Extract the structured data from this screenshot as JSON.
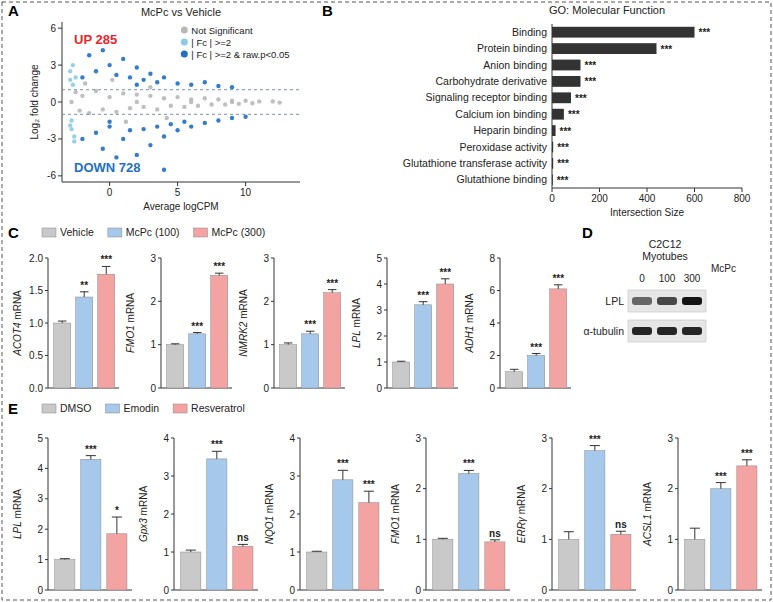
{
  "panel_labels": [
    "A",
    "B",
    "C",
    "D",
    "E"
  ],
  "legends": [
    {
      "labels": [
        "Vehicle",
        "McPc (100)",
        "McPc (300)"
      ],
      "colors": [
        "#c9c9c9",
        "#a6c8ea",
        "#f4a3a3"
      ]
    },
    {
      "labels": [
        "DMSO",
        "Emodin",
        "Resveratrol"
      ],
      "colors": [
        "#c9c9c9",
        "#a6c8ea",
        "#f4a3a3"
      ]
    }
  ],
  "blot": {
    "title": "C2C12 Myotubes",
    "treatment": "McPc",
    "lanes": [
      "0",
      "100",
      "300"
    ],
    "bands": [
      {
        "label": "LPL",
        "intensity": [
          0.6,
          0.72,
          0.92
        ]
      },
      {
        "label": "α-tubulin",
        "intensity": [
          0.85,
          0.85,
          0.85
        ]
      }
    ]
  },
  "chart_data": [
    {
      "type": "scatter",
      "title": "McPc vs Vehicle",
      "x_label": "Average logCPM",
      "y_label": "Log₂ fold change",
      "xlim": [
        -3.5,
        14
      ],
      "ylim": [
        -6.5,
        6.5
      ],
      "xticks": [
        0,
        5,
        10
      ],
      "yticks": [
        -6,
        -3,
        0,
        3,
        6
      ],
      "hlines": [
        1,
        -1
      ],
      "legend": "top-right",
      "annotations": [
        {
          "text": "UP 285",
          "color": "#e8262b"
        },
        {
          "text": "DOWN 728",
          "color": "#1f6fc4"
        }
      ],
      "series": [
        {
          "name": "Not Significant",
          "color": "#b8b8b8",
          "x": [
            -2.5,
            -2.2,
            -2,
            -1.5,
            -1,
            -0.5,
            0,
            0.5,
            1,
            1.5,
            2,
            2.5,
            3,
            3.5,
            4,
            4.5,
            5,
            5.5,
            6,
            6.5,
            7,
            7.5,
            8,
            8.5,
            9,
            9.5,
            10,
            10.5,
            11,
            -1.8,
            0.2,
            1.2,
            3,
            4.2,
            -2.8,
            2,
            6,
            9,
            12,
            12.5
          ],
          "values": [
            0.8,
            -0.7,
            0.5,
            -0.9,
            0.9,
            -0.6,
            0.4,
            -0.8,
            0.7,
            -0.5,
            0.6,
            -0.4,
            0.5,
            -0.6,
            0.3,
            -0.3,
            0.4,
            -0.4,
            0.2,
            -0.3,
            0.3,
            -0.2,
            0.2,
            -0.2,
            0.1,
            -0.15,
            0.1,
            -0.1,
            0.05,
            1.5,
            1.8,
            -1.6,
            1.2,
            -1.3,
            0,
            0,
            0,
            0,
            0.05,
            -0.05
          ]
        },
        {
          "name": "| Fc | >=2",
          "color": "#8ccbe8",
          "x": [
            -2.9,
            -2.8,
            -2.7,
            -2.6,
            -2.9,
            -2.8,
            -2.5,
            -2.6,
            -2.9,
            -2.7
          ],
          "values": [
            2.5,
            -2.2,
            3.0,
            -2.8,
            1.8,
            -1.5,
            2.0,
            -3.2,
            -1.9,
            1.4
          ]
        },
        {
          "name": "| Fc | >=2 & raw.p<0.05",
          "color": "#1f6fc4",
          "x": [
            -1.5,
            -1,
            -0.5,
            0,
            0.5,
            1,
            1.5,
            2,
            2.5,
            3,
            3.5,
            4,
            5,
            6,
            7,
            8,
            9,
            -1,
            -0.5,
            0,
            0.5,
            1,
            1.5,
            2,
            2.5,
            3,
            3.5,
            4,
            4.5,
            5,
            5.5,
            6,
            7,
            8,
            9,
            10,
            4,
            0,
            2,
            -2,
            -2
          ],
          "values": [
            3.8,
            2.5,
            4.2,
            3.0,
            2.2,
            3.5,
            2.0,
            2.8,
            1.8,
            2.3,
            1.6,
            2.0,
            1.5,
            1.4,
            1.6,
            1.3,
            1.2,
            -2.5,
            -3.8,
            -2.0,
            -4.5,
            -3.0,
            -2.3,
            -4.3,
            -2.2,
            -3.5,
            -2.0,
            -2.8,
            -1.8,
            -2.3,
            -1.6,
            -2.0,
            -1.7,
            -1.5,
            -1.3,
            -1.2,
            -5.5,
            -1.6,
            1.4,
            2.0,
            -3.0
          ]
        }
      ]
    },
    {
      "type": "bar",
      "orientation": "horizontal",
      "title": "GO: Molecular Function",
      "x_label": "Intersection Size",
      "color": "#333333",
      "categories": [
        "Binding",
        "Protein binding",
        "Anion binding",
        "Carbohydrate derivative",
        "Signaling receptor binding",
        "Calcium ion binding",
        "Heparin binding",
        "Peroxidase activity",
        "Glutathione transferase activity",
        "Glutathione binding"
      ],
      "values": [
        600,
        440,
        120,
        120,
        80,
        50,
        15,
        5,
        5,
        3
      ],
      "annotations": [
        "***",
        "***",
        "***",
        "***",
        "***",
        "***",
        "***",
        "***",
        "***",
        "***"
      ],
      "xlim": [
        0,
        800
      ],
      "xticks": [
        0,
        200,
        400,
        600,
        800
      ]
    },
    {
      "type": "bar",
      "y_label": "ACOT4 mRNA",
      "colors": [
        "#c9c9c9",
        "#a6c8ea",
        "#f4a3a3"
      ],
      "values": [
        1.0,
        1.4,
        1.75
      ],
      "errors": [
        0.03,
        0.08,
        0.12
      ],
      "annotations": [
        null,
        "**",
        "***"
      ],
      "ylim": [
        0,
        2
      ],
      "yticks": [
        {
          "value": 0,
          "label": "0.0"
        },
        0.5,
        {
          "value": 1,
          "label": "1.0"
        },
        1.5,
        {
          "value": 2,
          "label": "2.0"
        }
      ]
    },
    {
      "type": "bar",
      "y_label": "FMO1 mRNA",
      "colors": [
        "#c9c9c9",
        "#a6c8ea",
        "#f4a3a3"
      ],
      "values": [
        1.0,
        1.25,
        2.6
      ],
      "errors": [
        0.02,
        0.03,
        0.05
      ],
      "annotations": [
        null,
        "***",
        "***"
      ],
      "ylim": [
        0,
        3
      ],
      "yticks": [
        0,
        1,
        2,
        3
      ]
    },
    {
      "type": "bar",
      "y_label": "NMRK2 mRNA",
      "colors": [
        "#c9c9c9",
        "#a6c8ea",
        "#f4a3a3"
      ],
      "values": [
        1.0,
        1.25,
        2.2
      ],
      "errors": [
        0.04,
        0.06,
        0.07
      ],
      "annotations": [
        null,
        "***",
        "***"
      ],
      "ylim": [
        0,
        3
      ],
      "yticks": [
        0,
        1,
        2,
        3
      ]
    },
    {
      "type": "bar",
      "y_label": "LPL mRNA",
      "colors": [
        "#c9c9c9",
        "#a6c8ea",
        "#f4a3a3"
      ],
      "values": [
        1.0,
        3.2,
        4.0
      ],
      "errors": [
        0.03,
        0.12,
        0.2
      ],
      "annotations": [
        null,
        "***",
        "***"
      ],
      "ylim": [
        0,
        5
      ],
      "yticks": [
        0,
        1,
        2,
        3,
        4,
        5
      ]
    },
    {
      "type": "bar",
      "y_label": "ADH1 mRNA",
      "colors": [
        "#c9c9c9",
        "#a6c8ea",
        "#f4a3a3"
      ],
      "values": [
        1.0,
        2.0,
        6.1
      ],
      "errors": [
        0.15,
        0.12,
        0.25
      ],
      "annotations": [
        null,
        "***",
        "***"
      ],
      "ylim": [
        0,
        8
      ],
      "yticks": [
        0,
        2,
        4,
        6,
        8
      ]
    },
    {
      "type": "bar",
      "y_label": "LPL mRNA",
      "colors": [
        "#c9c9c9",
        "#a6c8ea",
        "#f4a3a3"
      ],
      "values": [
        1.0,
        4.3,
        1.85
      ],
      "errors": [
        0.03,
        0.12,
        0.55
      ],
      "annotations": [
        null,
        "***",
        "*"
      ],
      "ylim": [
        0,
        5
      ],
      "yticks": [
        0,
        1,
        2,
        3,
        4,
        5
      ]
    },
    {
      "type": "bar",
      "y_label": "Gpx3 mRNA",
      "colors": [
        "#c9c9c9",
        "#a6c8ea",
        "#f4a3a3"
      ],
      "values": [
        1.0,
        3.45,
        1.15
      ],
      "errors": [
        0.05,
        0.2,
        0.05
      ],
      "annotations": [
        null,
        "***",
        "ns"
      ],
      "ylim": [
        0,
        4
      ],
      "yticks": [
        0,
        1,
        2,
        3,
        4
      ]
    },
    {
      "type": "bar",
      "y_label": "NQO1 mRNA",
      "colors": [
        "#c9c9c9",
        "#a6c8ea",
        "#f4a3a3"
      ],
      "values": [
        1.0,
        2.9,
        2.3
      ],
      "errors": [
        0.02,
        0.25,
        0.3
      ],
      "annotations": [
        null,
        "***",
        "***"
      ],
      "ylim": [
        0,
        4
      ],
      "yticks": [
        0,
        1,
        2,
        3,
        4
      ]
    },
    {
      "type": "bar",
      "y_label": "FMO1 mRNA",
      "colors": [
        "#c9c9c9",
        "#a6c8ea",
        "#f4a3a3"
      ],
      "values": [
        1.0,
        2.3,
        0.95
      ],
      "errors": [
        0.02,
        0.06,
        0.04
      ],
      "annotations": [
        null,
        "***",
        "ns"
      ],
      "ylim": [
        0,
        3
      ],
      "yticks": [
        0,
        1,
        2,
        3
      ]
    },
    {
      "type": "bar",
      "y_label": "ERRγ mRNA",
      "colors": [
        "#c9c9c9",
        "#a6c8ea",
        "#f4a3a3"
      ],
      "values": [
        1.0,
        2.75,
        1.1
      ],
      "errors": [
        0.15,
        0.1,
        0.06
      ],
      "annotations": [
        null,
        "***",
        "ns"
      ],
      "ylim": [
        0,
        3
      ],
      "yticks": [
        0,
        1,
        2,
        3
      ]
    },
    {
      "type": "bar",
      "y_label": "ACSL1 mRNA",
      "colors": [
        "#c9c9c9",
        "#a6c8ea",
        "#f4a3a3"
      ],
      "values": [
        1.0,
        2.0,
        2.45
      ],
      "errors": [
        0.22,
        0.12,
        0.12
      ],
      "annotations": [
        null,
        "***",
        "***"
      ],
      "ylim": [
        0,
        3
      ],
      "yticks": [
        0,
        1,
        2,
        3
      ]
    }
  ]
}
